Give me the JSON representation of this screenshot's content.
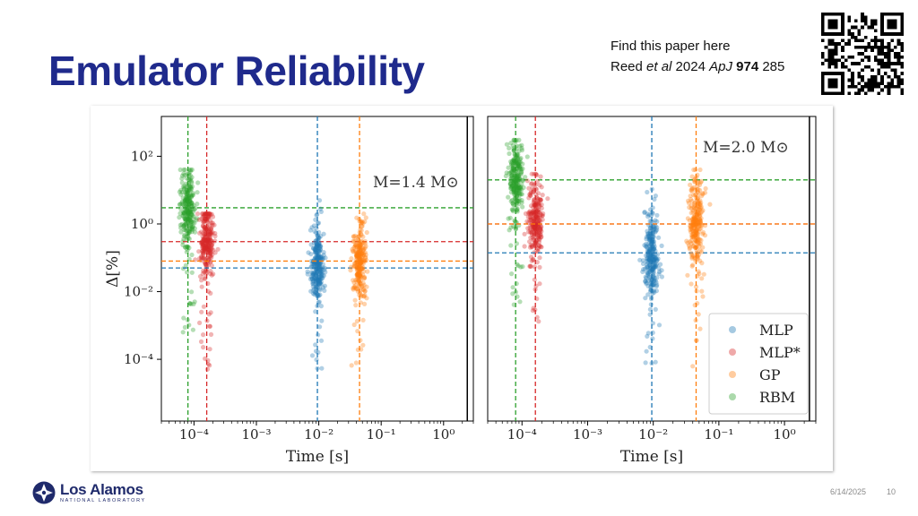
{
  "slide": {
    "title": "Emulator Reliability",
    "reference": {
      "line1": "Find this paper here",
      "line2_prefix": "Reed ",
      "line2_italic1": "et al",
      "line2_mid": " 2024 ",
      "line2_italic2": "ApJ",
      "line2_space": " ",
      "line2_bold": "974",
      "line2_suffix": " 285"
    },
    "footer": {
      "logo_main": "Los Alamos",
      "logo_sub": "NATIONAL LABORATORY",
      "date": "6/14/2025",
      "page": "10"
    }
  },
  "colors": {
    "MLP": "#1f77b4",
    "MLP*": "#d62728",
    "GP": "#ff7f0e",
    "RBM": "#2ca02c",
    "title": "#1f2a8c"
  },
  "icons": [
    "qr-code-icon",
    "lanl-logo-icon"
  ],
  "chart_data": [
    {
      "type": "scatter",
      "annotation": "M=1.4 M⊙",
      "xlabel": "Time [s]",
      "ylabel": "Δ[%]",
      "xscale": "log",
      "yscale": "log",
      "xlim": [
        3e-05,
        3
      ],
      "ylim": [
        1.5e-06,
        1500
      ],
      "xticks": [
        "10⁻⁴",
        "10⁻³",
        "10⁻²",
        "10⁻¹",
        "10⁰"
      ],
      "yticks": [
        "10²",
        "10⁰",
        "10⁻²",
        "10⁻⁴"
      ],
      "series": [
        {
          "name": "RBM",
          "time": 8e-05,
          "delta_range": [
            0.0003,
            40
          ],
          "median_delta": 3.0
        },
        {
          "name": "MLP*",
          "time": 0.00016,
          "delta_range": [
            5e-05,
            2
          ],
          "median_delta": 0.3
        },
        {
          "name": "MLP",
          "time": 0.0095,
          "delta_range": [
            5e-05,
            5
          ],
          "median_delta": 0.05
        },
        {
          "name": "GP",
          "time": 0.045,
          "delta_range": [
            5e-05,
            2
          ],
          "median_delta": 0.08
        }
      ]
    },
    {
      "type": "scatter",
      "annotation": "M=2.0 M⊙",
      "xlabel": "Time [s]",
      "ylabel": "",
      "xscale": "log",
      "yscale": "log",
      "xlim": [
        3e-05,
        3
      ],
      "ylim": [
        1.5e-06,
        1500
      ],
      "xticks": [
        "10⁻⁴",
        "10⁻³",
        "10⁻²",
        "10⁻¹",
        "10⁰"
      ],
      "yticks": [],
      "legend": {
        "position": "lower-right",
        "entries": [
          "MLP",
          "MLP*",
          "GP",
          "RBM"
        ]
      },
      "series": [
        {
          "name": "RBM",
          "time": 8e-05,
          "delta_range": [
            0.003,
            300
          ],
          "median_delta": 20
        },
        {
          "name": "MLP*",
          "time": 0.00016,
          "delta_range": [
            0.0003,
            30
          ],
          "median_delta": 1.0
        },
        {
          "name": "MLP",
          "time": 0.0095,
          "delta_range": [
            5e-05,
            20
          ],
          "median_delta": 0.14
        },
        {
          "name": "GP",
          "time": 0.045,
          "delta_range": [
            5e-05,
            40
          ],
          "median_delta": 1.0
        }
      ]
    }
  ]
}
